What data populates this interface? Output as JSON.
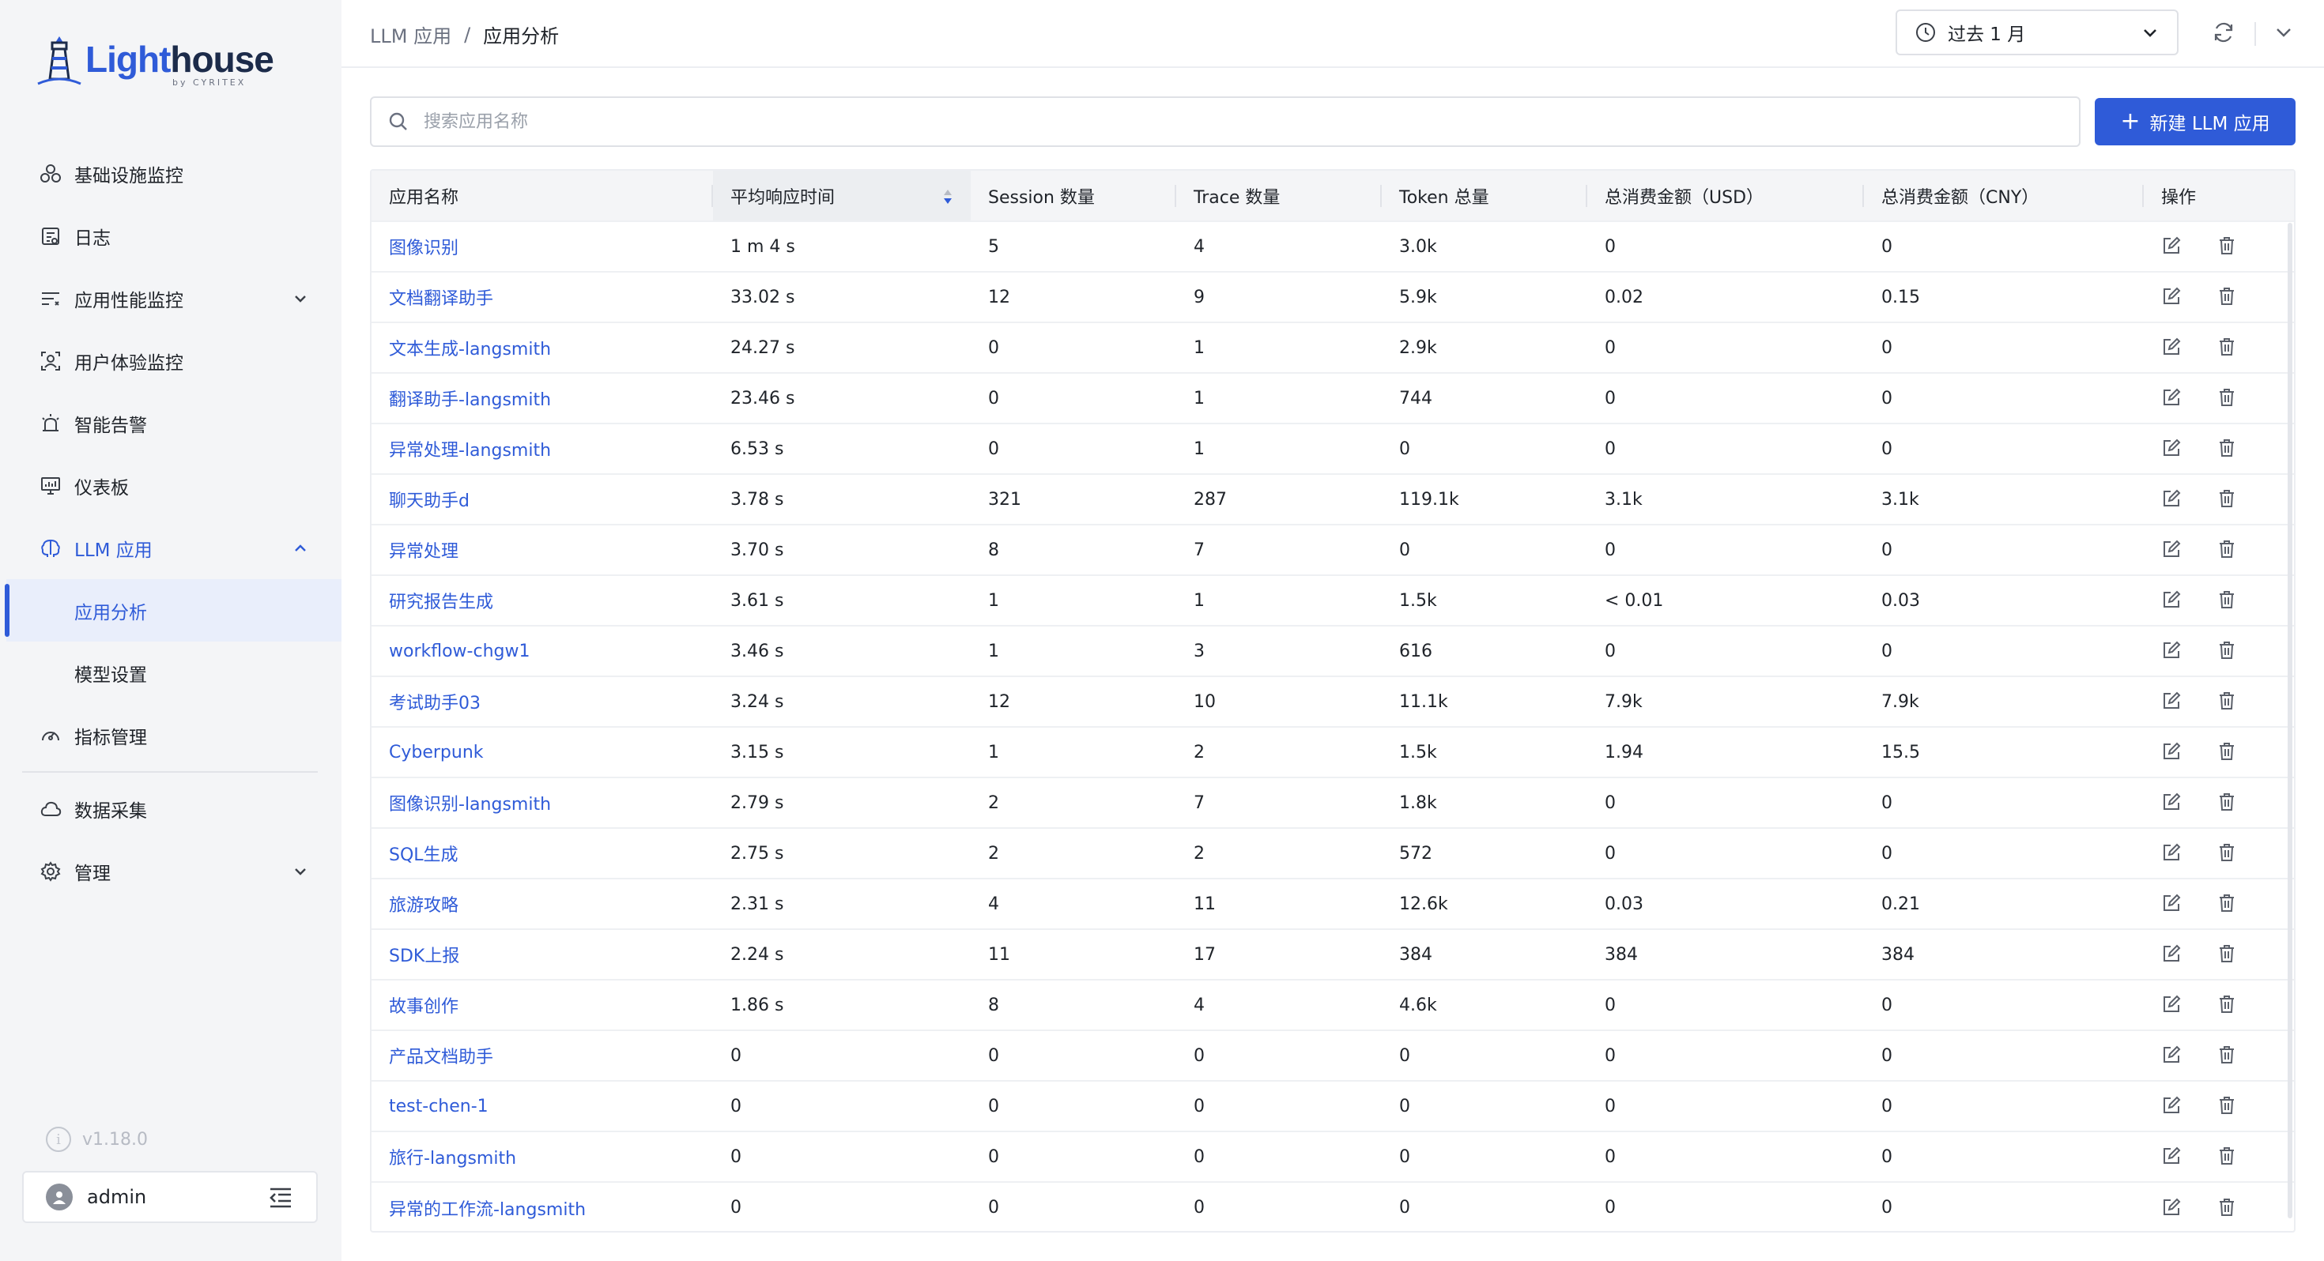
{
  "brand": {
    "name_part1": "Light",
    "name_part2": "house",
    "sub": "by CYRITEX"
  },
  "sidebar": {
    "items": [
      {
        "label": "基础设施监控",
        "icon": "infrastructure-icon"
      },
      {
        "label": "日志",
        "icon": "log-icon"
      },
      {
        "label": "应用性能监控",
        "icon": "apm-icon",
        "has_children": true
      },
      {
        "label": "用户体验监控",
        "icon": "user-experience-icon"
      },
      {
        "label": "智能告警",
        "icon": "alarm-icon"
      },
      {
        "label": "仪表板",
        "icon": "dashboard-icon"
      },
      {
        "label": "LLM 应用",
        "icon": "llm-icon",
        "open": true
      }
    ],
    "sub_items": [
      {
        "label": "应用分析",
        "active": true
      },
      {
        "label": "模型设置",
        "active": false
      }
    ],
    "items_after": [
      {
        "label": "指标管理",
        "icon": "metrics-icon"
      },
      {
        "label": "数据采集",
        "icon": "data-collect-icon"
      },
      {
        "label": "管理",
        "icon": "settings-icon",
        "has_children": true
      }
    ],
    "version": "v1.18.0",
    "user": "admin"
  },
  "header": {
    "breadcrumb_parent": "LLM 应用",
    "breadcrumb_sep": "/",
    "breadcrumb_current": "应用分析",
    "time_range": "过去 1 月"
  },
  "toolbar": {
    "search_placeholder": "搜索应用名称",
    "new_button_label": "新建 LLM 应用",
    "new_button_plus": "+"
  },
  "table": {
    "columns": [
      "应用名称",
      "平均响应时间",
      "Session 数量",
      "Trace 数量",
      "Token 总量",
      "总消费金额（USD）",
      "总消费金额（CNY）",
      "操作"
    ],
    "rows": [
      [
        "图像识别",
        "1 m 4 s",
        "5",
        "4",
        "3.0k",
        "0",
        "0"
      ],
      [
        "文档翻译助手",
        "33.02 s",
        "12",
        "9",
        "5.9k",
        "0.02",
        "0.15"
      ],
      [
        "文本生成-langsmith",
        "24.27 s",
        "0",
        "1",
        "2.9k",
        "0",
        "0"
      ],
      [
        "翻译助手-langsmith",
        "23.46 s",
        "0",
        "1",
        "744",
        "0",
        "0"
      ],
      [
        "异常处理-langsmith",
        "6.53 s",
        "0",
        "1",
        "0",
        "0",
        "0"
      ],
      [
        "聊天助手d",
        "3.78 s",
        "321",
        "287",
        "119.1k",
        "3.1k",
        "3.1k"
      ],
      [
        "异常处理",
        "3.70 s",
        "8",
        "7",
        "0",
        "0",
        "0"
      ],
      [
        "研究报告生成",
        "3.61 s",
        "1",
        "1",
        "1.5k",
        "< 0.01",
        "0.03"
      ],
      [
        "workflow-chgw1",
        "3.46 s",
        "1",
        "3",
        "616",
        "0",
        "0"
      ],
      [
        "考试助手03",
        "3.24 s",
        "12",
        "10",
        "11.1k",
        "7.9k",
        "7.9k"
      ],
      [
        "Cyberpunk",
        "3.15 s",
        "1",
        "2",
        "1.5k",
        "1.94",
        "15.5"
      ],
      [
        "图像识别-langsmith",
        "2.79 s",
        "2",
        "7",
        "1.8k",
        "0",
        "0"
      ],
      [
        "SQL生成",
        "2.75 s",
        "2",
        "2",
        "572",
        "0",
        "0"
      ],
      [
        "旅游攻略",
        "2.31 s",
        "4",
        "11",
        "12.6k",
        "0.03",
        "0.21"
      ],
      [
        "SDK上报",
        "2.24 s",
        "11",
        "17",
        "384",
        "384",
        "384"
      ],
      [
        "故事创作",
        "1.86 s",
        "8",
        "4",
        "4.6k",
        "0",
        "0"
      ],
      [
        "产品文档助手",
        "0",
        "0",
        "0",
        "0",
        "0",
        "0"
      ],
      [
        "test-chen-1",
        "0",
        "0",
        "0",
        "0",
        "0",
        "0"
      ],
      [
        "旅行-langsmith",
        "0",
        "0",
        "0",
        "0",
        "0",
        "0"
      ],
      [
        "异常的工作流-langsmith",
        "0",
        "0",
        "0",
        "0",
        "0",
        "0"
      ]
    ]
  },
  "colors": {
    "accent": "#2f5bd8",
    "sidebar_bg": "#f4f5f7"
  }
}
